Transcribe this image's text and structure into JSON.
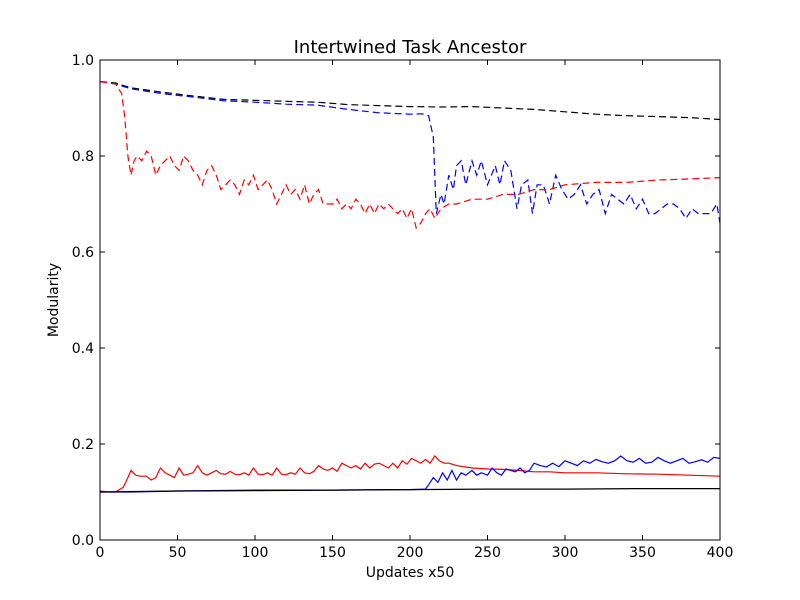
{
  "chart_data": {
    "type": "line",
    "title": "Intertwined Task Ancestor",
    "xlabel": "Updates x50",
    "ylabel": "Modularity",
    "xlim": [
      0,
      400
    ],
    "ylim": [
      0.0,
      1.0
    ],
    "x_ticks": [
      "0",
      "50",
      "100",
      "150",
      "200",
      "250",
      "300",
      "350",
      "400"
    ],
    "y_ticks": [
      "0.0",
      "0.2",
      "0.4",
      "0.6",
      "0.8",
      "1.0"
    ],
    "grid": false,
    "legend": "none",
    "series": [
      {
        "color": "#000000",
        "style": "dashed",
        "x": [
          0,
          10,
          20,
          40,
          60,
          80,
          100,
          120,
          140,
          160,
          180,
          200,
          220,
          240,
          260,
          280,
          300,
          320,
          340,
          360,
          380,
          400
        ],
        "y": [
          0.955,
          0.952,
          0.942,
          0.933,
          0.925,
          0.918,
          0.916,
          0.914,
          0.912,
          0.907,
          0.905,
          0.903,
          0.902,
          0.903,
          0.9,
          0.897,
          0.892,
          0.887,
          0.884,
          0.882,
          0.88,
          0.876
        ]
      },
      {
        "color": "#0000ff",
        "style": "dashed",
        "x": [
          0,
          10,
          20,
          40,
          60,
          80,
          100,
          120,
          140,
          160,
          180,
          200,
          208,
          212,
          215,
          217,
          220,
          222,
          225,
          228,
          230,
          233,
          236,
          240,
          243,
          246,
          250,
          255,
          258,
          261,
          265,
          269,
          272,
          276,
          279,
          282,
          286,
          290,
          294,
          298,
          302,
          306,
          310,
          314,
          318,
          322,
          326,
          330,
          334,
          338,
          342,
          346,
          350,
          354,
          358,
          362,
          366,
          370,
          374,
          378,
          382,
          386,
          390,
          394,
          398,
          400
        ],
        "y": [
          0.955,
          0.95,
          0.94,
          0.93,
          0.923,
          0.915,
          0.912,
          0.908,
          0.906,
          0.897,
          0.89,
          0.887,
          0.888,
          0.884,
          0.84,
          0.68,
          0.72,
          0.7,
          0.76,
          0.73,
          0.78,
          0.79,
          0.74,
          0.79,
          0.76,
          0.79,
          0.74,
          0.78,
          0.74,
          0.79,
          0.77,
          0.69,
          0.74,
          0.75,
          0.68,
          0.74,
          0.74,
          0.7,
          0.76,
          0.73,
          0.71,
          0.72,
          0.74,
          0.7,
          0.72,
          0.73,
          0.68,
          0.72,
          0.71,
          0.7,
          0.72,
          0.69,
          0.71,
          0.68,
          0.68,
          0.69,
          0.7,
          0.7,
          0.69,
          0.67,
          0.69,
          0.68,
          0.68,
          0.68,
          0.7,
          0.66
        ]
      },
      {
        "color": "#ff0000",
        "style": "dashed",
        "x": [
          0,
          10,
          14,
          16,
          18,
          20,
          22,
          24,
          27,
          30,
          33,
          36,
          39,
          42,
          45,
          48,
          51,
          54,
          57,
          60,
          63,
          66,
          69,
          72,
          75,
          78,
          81,
          84,
          87,
          90,
          93,
          96,
          99,
          102,
          105,
          108,
          111,
          114,
          117,
          120,
          123,
          126,
          129,
          132,
          135,
          138,
          141,
          144,
          147,
          150,
          153,
          156,
          159,
          162,
          165,
          168,
          171,
          174,
          177,
          180,
          183,
          186,
          189,
          192,
          195,
          198,
          201,
          204,
          207,
          210,
          213,
          216,
          220,
          225,
          230,
          240,
          250,
          260,
          270,
          280,
          290,
          300,
          320,
          340,
          360,
          380,
          400
        ],
        "y": [
          0.955,
          0.95,
          0.93,
          0.88,
          0.8,
          0.76,
          0.79,
          0.8,
          0.79,
          0.81,
          0.8,
          0.76,
          0.78,
          0.79,
          0.8,
          0.78,
          0.77,
          0.8,
          0.79,
          0.77,
          0.76,
          0.74,
          0.77,
          0.78,
          0.76,
          0.73,
          0.74,
          0.75,
          0.74,
          0.72,
          0.75,
          0.74,
          0.76,
          0.73,
          0.74,
          0.75,
          0.73,
          0.7,
          0.72,
          0.74,
          0.72,
          0.73,
          0.71,
          0.74,
          0.7,
          0.72,
          0.73,
          0.7,
          0.7,
          0.7,
          0.71,
          0.69,
          0.7,
          0.69,
          0.71,
          0.7,
          0.68,
          0.7,
          0.68,
          0.7,
          0.69,
          0.7,
          0.69,
          0.68,
          0.69,
          0.67,
          0.69,
          0.65,
          0.66,
          0.68,
          0.69,
          0.67,
          0.69,
          0.7,
          0.7,
          0.71,
          0.71,
          0.72,
          0.72,
          0.73,
          0.73,
          0.74,
          0.745,
          0.745,
          0.75,
          0.752,
          0.755
        ]
      },
      {
        "color": "#ff0000",
        "style": "solid",
        "x": [
          0,
          5,
          10,
          15,
          18,
          20,
          23,
          26,
          30,
          33,
          36,
          39,
          42,
          45,
          48,
          51,
          54,
          57,
          60,
          63,
          66,
          69,
          72,
          75,
          78,
          81,
          84,
          87,
          90,
          93,
          96,
          99,
          102,
          105,
          108,
          111,
          114,
          117,
          120,
          123,
          126,
          129,
          132,
          135,
          138,
          141,
          144,
          147,
          150,
          153,
          156,
          159,
          162,
          165,
          168,
          171,
          174,
          177,
          180,
          183,
          186,
          189,
          192,
          195,
          198,
          201,
          204,
          207,
          210,
          213,
          216,
          219,
          222,
          225,
          230,
          240,
          250,
          260,
          270,
          280,
          290,
          300,
          320,
          340,
          360,
          380,
          400
        ],
        "y": [
          0.102,
          0.1,
          0.1,
          0.11,
          0.13,
          0.145,
          0.135,
          0.133,
          0.133,
          0.125,
          0.13,
          0.15,
          0.14,
          0.135,
          0.13,
          0.15,
          0.135,
          0.137,
          0.14,
          0.155,
          0.14,
          0.135,
          0.14,
          0.145,
          0.138,
          0.137,
          0.143,
          0.137,
          0.136,
          0.14,
          0.135,
          0.15,
          0.137,
          0.136,
          0.14,
          0.135,
          0.15,
          0.137,
          0.136,
          0.14,
          0.137,
          0.15,
          0.14,
          0.138,
          0.143,
          0.155,
          0.148,
          0.145,
          0.15,
          0.143,
          0.16,
          0.155,
          0.15,
          0.155,
          0.148,
          0.16,
          0.15,
          0.158,
          0.16,
          0.155,
          0.15,
          0.16,
          0.15,
          0.165,
          0.158,
          0.17,
          0.165,
          0.16,
          0.168,
          0.16,
          0.175,
          0.165,
          0.16,
          0.16,
          0.155,
          0.15,
          0.148,
          0.147,
          0.145,
          0.142,
          0.142,
          0.14,
          0.14,
          0.138,
          0.137,
          0.135,
          0.133
        ]
      },
      {
        "color": "#0000ff",
        "style": "solid",
        "x": [
          0,
          20,
          50,
          100,
          150,
          200,
          210,
          212,
          215,
          218,
          221,
          224,
          227,
          230,
          233,
          236,
          240,
          243,
          246,
          250,
          253,
          256,
          259,
          262,
          265,
          268,
          271,
          274,
          277,
          280,
          284,
          288,
          292,
          296,
          300,
          304,
          308,
          312,
          316,
          320,
          324,
          328,
          332,
          336,
          340,
          344,
          348,
          352,
          356,
          360,
          364,
          368,
          372,
          376,
          380,
          384,
          388,
          392,
          396,
          400
        ],
        "y": [
          0.1,
          0.1,
          0.102,
          0.104,
          0.104,
          0.105,
          0.106,
          0.115,
          0.13,
          0.12,
          0.14,
          0.125,
          0.145,
          0.125,
          0.14,
          0.135,
          0.145,
          0.135,
          0.14,
          0.135,
          0.15,
          0.14,
          0.135,
          0.148,
          0.145,
          0.142,
          0.15,
          0.14,
          0.145,
          0.16,
          0.155,
          0.152,
          0.16,
          0.153,
          0.165,
          0.16,
          0.155,
          0.165,
          0.16,
          0.168,
          0.163,
          0.16,
          0.165,
          0.175,
          0.165,
          0.162,
          0.17,
          0.16,
          0.162,
          0.172,
          0.165,
          0.16,
          0.165,
          0.17,
          0.16,
          0.163,
          0.167,
          0.162,
          0.172,
          0.17
        ]
      },
      {
        "color": "#000000",
        "style": "solid",
        "x": [
          0,
          50,
          100,
          150,
          200,
          250,
          300,
          350,
          400
        ],
        "y": [
          0.1,
          0.102,
          0.103,
          0.104,
          0.105,
          0.106,
          0.106,
          0.107,
          0.107
        ]
      }
    ]
  }
}
